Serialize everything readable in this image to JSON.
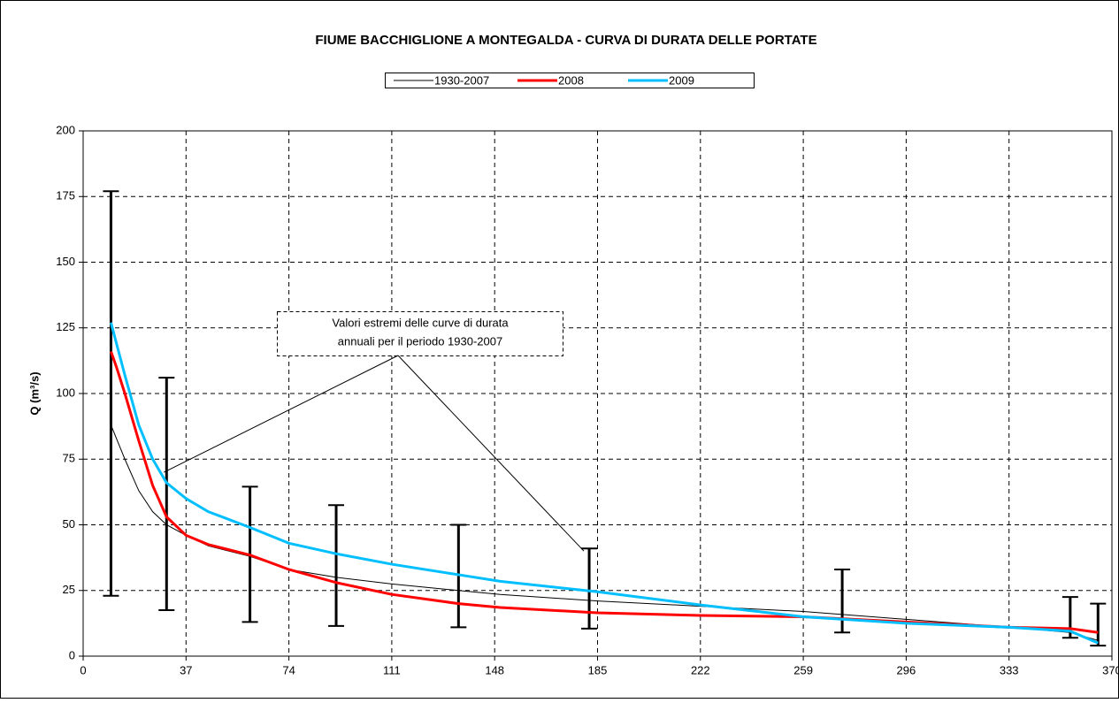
{
  "chart_data": {
    "type": "line",
    "title": "FIUME BACCHIGLIONE A MONTEGALDA - CURVA DI DURATA DELLE PORTATE",
    "y_label": "Q (m³/s)",
    "annotation": [
      "Valori estremi delle curve di durata",
      "annuali per il periodo 1930-2007"
    ],
    "xlim": [
      0,
      370
    ],
    "xticks": [
      0,
      37,
      74,
      111,
      148,
      185,
      222,
      259,
      296,
      333,
      370
    ],
    "ylim": [
      0,
      200
    ],
    "yticks": [
      0,
      25,
      50,
      75,
      100,
      125,
      150,
      175,
      200
    ],
    "grid": true,
    "series": [
      {
        "name": "1930-2007",
        "color": "#000000",
        "x": [
          10,
          15,
          20,
          25,
          30,
          37,
          45,
          60,
          74,
          91,
          111,
          135,
          150,
          185,
          222,
          259,
          296,
          333,
          355,
          365
        ],
        "values": [
          88,
          75,
          63,
          55,
          50,
          46,
          42,
          38,
          33,
          30,
          27.5,
          25,
          23.5,
          21,
          19,
          17,
          14,
          11,
          9,
          6
        ]
      },
      {
        "name": "2008",
        "color": "#ff0000",
        "x": [
          10,
          12,
          15,
          20,
          25,
          30,
          37,
          45,
          60,
          74,
          91,
          111,
          135,
          150,
          185,
          222,
          259,
          296,
          333,
          355,
          365
        ],
        "values": [
          116,
          110,
          100,
          82,
          65,
          53,
          46,
          42.5,
          38.5,
          33,
          28,
          23.5,
          20,
          18.5,
          16.5,
          15.5,
          15,
          13,
          11,
          10.5,
          9
        ]
      },
      {
        "name": "2009",
        "color": "#00bfff",
        "x": [
          10,
          15,
          20,
          25,
          30,
          37,
          45,
          60,
          74,
          91,
          111,
          135,
          150,
          185,
          222,
          259,
          296,
          333,
          355,
          365
        ],
        "values": [
          127,
          107,
          88,
          75,
          66,
          60,
          55,
          49,
          43,
          39,
          35,
          31,
          28.5,
          24.5,
          19.5,
          15,
          12.5,
          11,
          9.5,
          5
        ]
      }
    ],
    "extremes": {
      "x": [
        10,
        30,
        60,
        91,
        135,
        182,
        273,
        355,
        365
      ],
      "low": [
        23,
        17.5,
        13,
        11.5,
        11,
        10.5,
        9,
        7,
        4
      ],
      "high": [
        177,
        106,
        64.5,
        57.5,
        50,
        41,
        33,
        22.5,
        20
      ]
    }
  }
}
